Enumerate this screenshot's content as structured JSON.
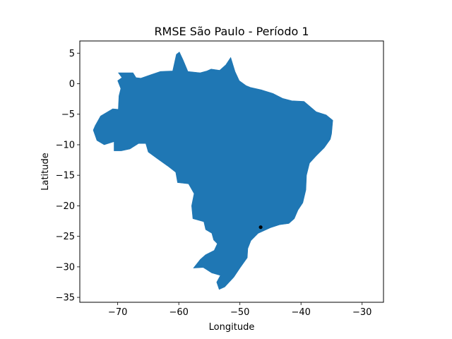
{
  "chart_data": {
    "type": "scatter",
    "title": "RMSE São Paulo - Período 1",
    "xlabel": "Longitude",
    "ylabel": "Latitude",
    "xlim": [
      -76.2,
      -26.5
    ],
    "ylim": [
      -35.8,
      7.0
    ],
    "xticks": [
      -70,
      -60,
      -50,
      -40,
      -30
    ],
    "xtick_labels": [
      "−70",
      "−60",
      "−50",
      "−40",
      "−30"
    ],
    "yticks": [
      5,
      0,
      -5,
      -10,
      -15,
      -20,
      -25,
      -30,
      -35
    ],
    "ytick_labels": [
      "5",
      "0",
      "−5",
      "−10",
      "−15",
      "−20",
      "−25",
      "−30",
      "−35"
    ],
    "grid": false,
    "region_fill": "#1f77b4",
    "region_outline": [
      [
        -69.9,
        1.8
      ],
      [
        -67.5,
        1.8
      ],
      [
        -67.0,
        1.0
      ],
      [
        -66.2,
        0.9
      ],
      [
        -64.5,
        1.5
      ],
      [
        -63.0,
        2.0
      ],
      [
        -61.0,
        2.1
      ],
      [
        -60.4,
        4.8
      ],
      [
        -59.9,
        5.2
      ],
      [
        -59.3,
        3.9
      ],
      [
        -58.5,
        2.0
      ],
      [
        -56.5,
        1.8
      ],
      [
        -55.4,
        2.1
      ],
      [
        -54.7,
        2.4
      ],
      [
        -53.3,
        2.2
      ],
      [
        -52.3,
        3.1
      ],
      [
        -51.5,
        4.3
      ],
      [
        -50.8,
        2.0
      ],
      [
        -50.1,
        0.5
      ],
      [
        -49.0,
        -0.3
      ],
      [
        -48.3,
        -0.6
      ],
      [
        -46.5,
        -1.0
      ],
      [
        -44.6,
        -1.6
      ],
      [
        -43.0,
        -2.4
      ],
      [
        -41.5,
        -2.8
      ],
      [
        -39.5,
        -2.9
      ],
      [
        -37.5,
        -4.6
      ],
      [
        -35.9,
        -5.1
      ],
      [
        -34.8,
        -6.0
      ],
      [
        -35.0,
        -8.2
      ],
      [
        -35.2,
        -9.1
      ],
      [
        -36.2,
        -10.5
      ],
      [
        -37.5,
        -11.8
      ],
      [
        -38.6,
        -13.0
      ],
      [
        -39.1,
        -15.0
      ],
      [
        -39.2,
        -17.4
      ],
      [
        -39.7,
        -19.5
      ],
      [
        -40.5,
        -20.7
      ],
      [
        -41.1,
        -22.1
      ],
      [
        -42.0,
        -22.9
      ],
      [
        -43.5,
        -23.1
      ],
      [
        -45.0,
        -23.6
      ],
      [
        -47.0,
        -24.5
      ],
      [
        -48.2,
        -25.7
      ],
      [
        -48.7,
        -27.0
      ],
      [
        -48.8,
        -28.5
      ],
      [
        -50.0,
        -30.2
      ],
      [
        -51.0,
        -31.7
      ],
      [
        -52.5,
        -33.3
      ],
      [
        -53.4,
        -33.7
      ],
      [
        -53.8,
        -32.5
      ],
      [
        -53.2,
        -31.4
      ],
      [
        -54.6,
        -31.0
      ],
      [
        -56.0,
        -30.1
      ],
      [
        -57.6,
        -30.2
      ],
      [
        -56.5,
        -28.8
      ],
      [
        -55.6,
        -28.0
      ],
      [
        -54.2,
        -27.3
      ],
      [
        -53.7,
        -26.2
      ],
      [
        -54.3,
        -25.6
      ],
      [
        -54.6,
        -24.5
      ],
      [
        -55.6,
        -23.9
      ],
      [
        -55.9,
        -22.6
      ],
      [
        -57.7,
        -22.1
      ],
      [
        -57.9,
        -20.0
      ],
      [
        -57.5,
        -18.0
      ],
      [
        -58.4,
        -16.4
      ],
      [
        -60.2,
        -16.2
      ],
      [
        -60.5,
        -14.5
      ],
      [
        -61.8,
        -13.5
      ],
      [
        -63.5,
        -12.3
      ],
      [
        -65.0,
        -11.2
      ],
      [
        -65.4,
        -9.8
      ],
      [
        -66.6,
        -9.8
      ],
      [
        -68.0,
        -10.7
      ],
      [
        -69.4,
        -11.0
      ],
      [
        -70.6,
        -11.0
      ],
      [
        -70.6,
        -9.5
      ],
      [
        -72.2,
        -10.0
      ],
      [
        -73.4,
        -9.3
      ],
      [
        -74.0,
        -7.6
      ],
      [
        -73.7,
        -6.9
      ],
      [
        -72.8,
        -5.3
      ],
      [
        -70.8,
        -4.1
      ],
      [
        -69.9,
        -4.2
      ],
      [
        -69.8,
        -2.0
      ],
      [
        -69.5,
        -0.8
      ],
      [
        -70.0,
        0.5
      ],
      [
        -69.3,
        1.0
      ]
    ],
    "points": [
      {
        "x": -46.6,
        "y": -23.5,
        "color": "#000000"
      }
    ]
  }
}
